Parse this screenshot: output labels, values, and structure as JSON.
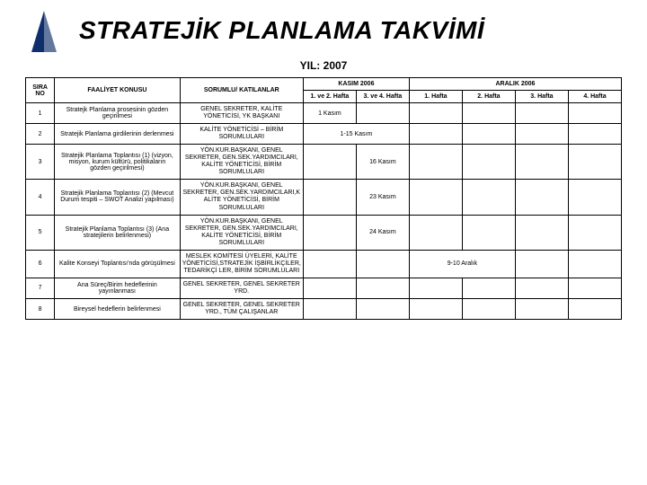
{
  "title": "STRATEJİK PLANLAMA TAKVİMİ",
  "subtitle": "YIL: 2007",
  "logo_color": "#0e2f6c",
  "border_color": "#000000",
  "bg_color": "#ffffff",
  "headers": {
    "sira": "SIRA NO",
    "activity": "FAALİYET KONUSU",
    "people": "SORUMLU/ KATILANLAR",
    "kasim": "KASIM 2006",
    "aralik": "ARALIK 2006",
    "k1": "1. ve 2. Hafta",
    "k2": "3. ve 4. Hafta",
    "a1": "1. Hafta",
    "a2": "2. Hafta",
    "a3": "3. Hafta",
    "a4": "4. Hafta"
  },
  "rows": [
    {
      "no": "1",
      "activity": "Stratejk Planlama prosesinin gözden geçirilmesi",
      "people": "GENEL SEKRETER, KALİTE YÖNETİCİSİ, YK BAŞKANI",
      "k1": "1 Kasım",
      "k2": "",
      "a1": "",
      "a2": "",
      "a3": "",
      "a4": ""
    },
    {
      "no": "2",
      "activity": "Stratejik Planlama girdilerinin derlenmesi",
      "people": "KALİTE YÖNETİCİSİ – BİRİM SORUMLULARI",
      "k_span": "1-15 Kasım",
      "a1": "",
      "a2": "",
      "a3": "",
      "a4": ""
    },
    {
      "no": "3",
      "activity": "Stratejik Planlama Toplantısı (1) (vizyon, misyon, kurum kültürü, politikaların gözden geçirilmesi)",
      "people": "YÖN.KUR.BAŞKANI, GENEL SEKRETER, GEN.SEK.YARDIMCILARI, KALİTE YÖNETİCİSİ, BİRİM SORUMLULARI",
      "k1": "",
      "k2": "16 Kasım",
      "a1": "",
      "a2": "",
      "a3": "",
      "a4": ""
    },
    {
      "no": "4",
      "activity": "Stratejik Planlama Toplantısı (2) (Mevcut Durum tespiti – SWOT Analizi yapılması)",
      "people": "YÖN.KUR.BAŞKANI, GENEL SEKRETER, GEN.SEK.YARDIMCILARI,K ALİTE YÖNETİCİSİ, BİRİM SORUMLULARI",
      "k1": "",
      "k2": "23 Kasım",
      "a1": "",
      "a2": "",
      "a3": "",
      "a4": ""
    },
    {
      "no": "5",
      "activity": "Stratejik Planlama Toplantısı (3) (Ana stratejilerin belirlenmesi)",
      "people": "YÖN.KUR.BAŞKANI, GENEL SEKRETER, GEN.SEK.YARDIMCILARI, KALİTE YÖNETİCİSİ, BİRİM SORUMLULARI",
      "k1": "",
      "k2": "24 Kasım",
      "a1": "",
      "a2": "",
      "a3": "",
      "a4": ""
    },
    {
      "no": "6",
      "activity": "Kalite Konseyi Toplantısı'nda görüşülmesi",
      "people": "MESLEK KOMİTESİ ÜYELERİ, KALİTE YÖNETİCİSİ,STRATEJİK İŞBİRLİKÇİLER, TEDARİKÇİ LER, BİRİM SORUMLULARI",
      "k1": "",
      "k2": "",
      "a_span12": "9-10 Aralık",
      "a3": "",
      "a4": ""
    },
    {
      "no": "7",
      "activity": "Ana Süreç/Birim hedeflerinin yayınlanması",
      "people": "GENEL SEKRETER, GENEL SEKRETER YRD.",
      "k1": "",
      "k2": "",
      "a1": "",
      "a2": "",
      "a3": "",
      "a4": ""
    },
    {
      "no": "8",
      "activity": "Bireysel hedeflerin belirlenmesi",
      "people": "GENEL SEKRETER, GENEL SEKRETER YRD., TÜM ÇALIŞANLAR",
      "k1": "",
      "k2": "",
      "a1": "",
      "a2": "",
      "a3": "",
      "a4": ""
    }
  ]
}
